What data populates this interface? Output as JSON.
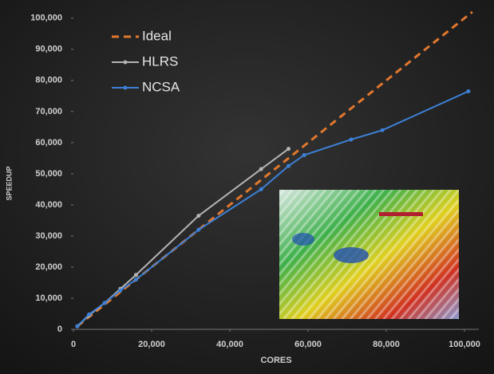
{
  "chart_data": {
    "type": "line",
    "x_label": "CORES",
    "y_label": "SPEEDUP",
    "xlim": [
      0,
      103000
    ],
    "ylim": [
      0,
      102000
    ],
    "xticks": [
      0,
      {
        "value": 20000,
        "label": "20,000"
      },
      {
        "value": 40000,
        "label": "40,000"
      },
      {
        "value": 60000,
        "label": "60,000"
      },
      {
        "value": 80000,
        "label": "80,000"
      },
      {
        "value": 100000,
        "label": "100,000"
      }
    ],
    "yticks": [
      0,
      {
        "value": 10000,
        "label": "10,000"
      },
      {
        "value": 20000,
        "label": "20,000"
      },
      {
        "value": 30000,
        "label": "30,000"
      },
      {
        "value": 40000,
        "label": "40,000"
      },
      {
        "value": 50000,
        "label": "50,000"
      },
      {
        "value": 60000,
        "label": "60,000"
      },
      {
        "value": 70000,
        "label": "70,000"
      },
      {
        "value": 80000,
        "label": "80,000"
      },
      {
        "value": 90000,
        "label": "90,000"
      },
      {
        "value": 100000,
        "label": "100,000"
      }
    ],
    "grid": false,
    "legend": "upper left",
    "series": [
      {
        "name": "Ideal",
        "color": "#e0772e",
        "dashed": true,
        "marker": false,
        "x": [
          1000,
          102000
        ],
        "values": [
          1000,
          102000
        ]
      },
      {
        "name": "HLRS",
        "color": "#b4b4b4",
        "dashed": false,
        "marker": true,
        "x": [
          1000,
          4000,
          8000,
          12000,
          16000,
          32000,
          48000,
          55000
        ],
        "values": [
          1000,
          4500,
          8500,
          13000,
          17500,
          36500,
          51500,
          58000
        ]
      },
      {
        "name": "NCSA",
        "color": "#3d80d6",
        "dashed": false,
        "marker": true,
        "x": [
          1000,
          4000,
          8000,
          12000,
          16000,
          32000,
          48000,
          55000,
          59000,
          71000,
          79000,
          101000
        ],
        "values": [
          1000,
          4800,
          8500,
          12500,
          16000,
          32000,
          45000,
          52500,
          56000,
          61000,
          64000,
          76500
        ]
      }
    ]
  }
}
